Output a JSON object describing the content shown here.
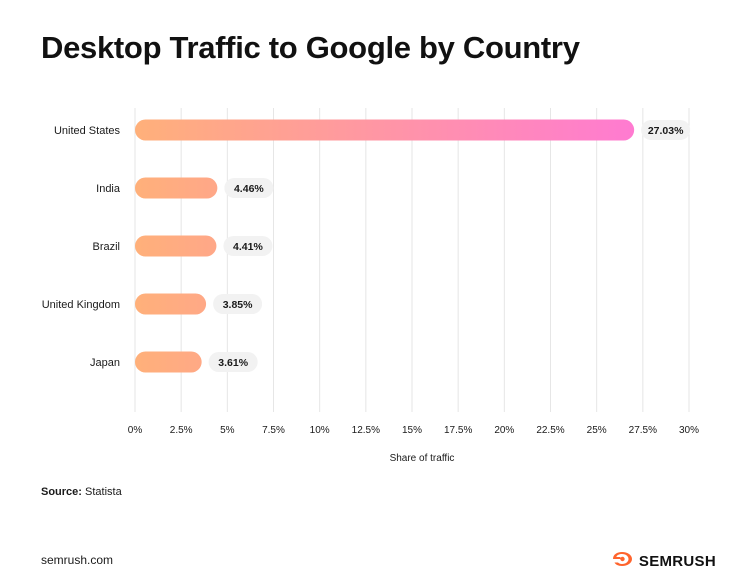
{
  "title": "Desktop Traffic to Google by Country",
  "source_label": "Source:",
  "source_value": "Statista",
  "footer_site": "semrush.com",
  "brand_name": "SEMRUSH",
  "brand_icon": "semrush-fire-icon",
  "colors": {
    "bar_start": "#ffb07a",
    "bar_end": "#ff7ad2",
    "label_bg": "#f2f2f2",
    "grid": "#e6e6e6",
    "brand_orange": "#ff642d"
  },
  "chart_data": {
    "type": "bar",
    "orientation": "horizontal",
    "categories": [
      "United States",
      "India",
      "Brazil",
      "United Kingdom",
      "Japan"
    ],
    "values": [
      27.03,
      4.46,
      4.41,
      3.85,
      3.61
    ],
    "value_labels": [
      "27.03%",
      "4.46%",
      "4.41%",
      "3.85%",
      "3.61%"
    ],
    "xlabel": "Share of traffic",
    "xlim": [
      0,
      30
    ],
    "xticks": [
      0,
      2.5,
      5,
      7.5,
      10,
      12.5,
      15,
      17.5,
      20,
      22.5,
      25,
      27.5,
      30
    ],
    "xtick_labels": [
      "0%",
      "2.5%",
      "5%",
      "7.5%",
      "10%",
      "12.5%",
      "15%",
      "17.5%",
      "20%",
      "22.5%",
      "25%",
      "27.5%",
      "30%"
    ],
    "grid": true
  }
}
